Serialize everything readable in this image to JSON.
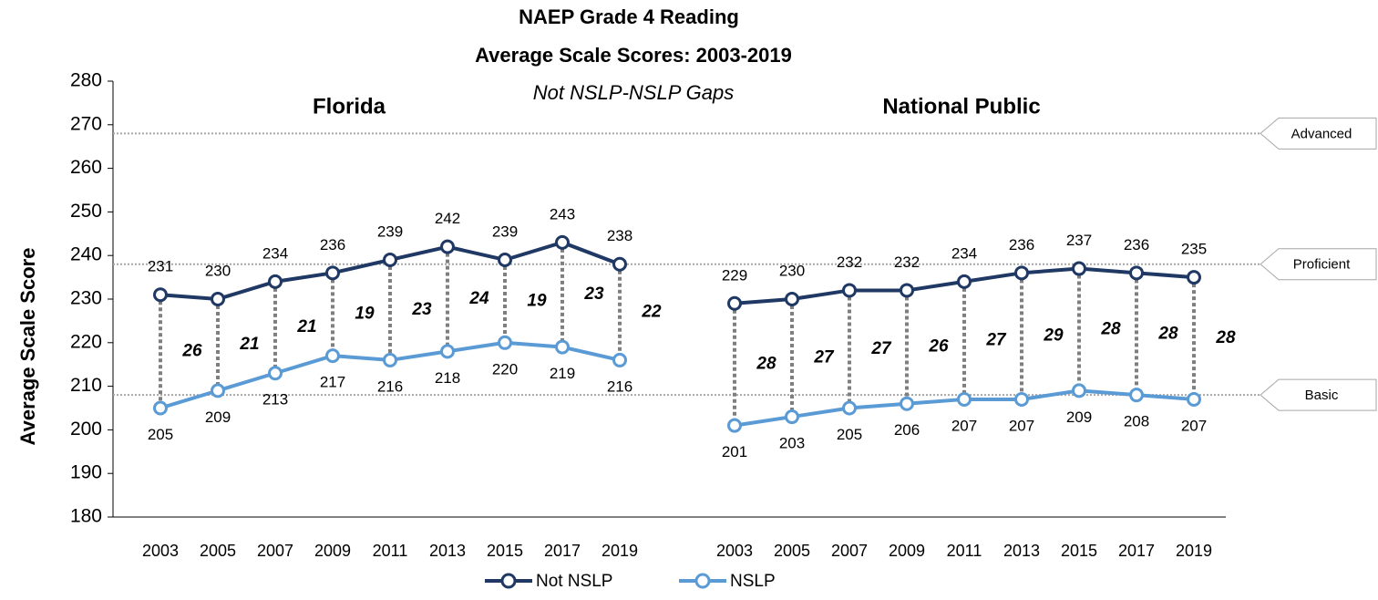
{
  "chart_data": {
    "type": "line",
    "title": "NAEP Grade 4 Reading",
    "subtitle": "Average Scale Scores: 2003-2019",
    "annotation": "Not NSLP-NSLP Gaps",
    "y_label": "Average Scale Score",
    "panels": [
      "Florida",
      "National Public"
    ],
    "categories": [
      "2003",
      "2005",
      "2007",
      "2009",
      "2011",
      "2013",
      "2015",
      "2017",
      "2019",
      null,
      "2003",
      "2005",
      "2007",
      "2009",
      "2011",
      "2013",
      "2015",
      "2017",
      "2019"
    ],
    "series": [
      {
        "name": "Not NSLP",
        "color": "#1f3864",
        "values": [
          231,
          230,
          234,
          236,
          239,
          242,
          239,
          243,
          238,
          null,
          229,
          230,
          232,
          232,
          234,
          236,
          237,
          236,
          235
        ]
      },
      {
        "name": "NSLP",
        "color": "#5b9bd5",
        "values": [
          205,
          209,
          213,
          217,
          216,
          218,
          220,
          219,
          216,
          null,
          201,
          203,
          205,
          206,
          207,
          207,
          209,
          208,
          207
        ]
      }
    ],
    "gaps": [
      26,
      21,
      21,
      19,
      23,
      24,
      19,
      23,
      22,
      null,
      28,
      27,
      27,
      26,
      27,
      29,
      28,
      28,
      28
    ],
    "reference_lines": [
      {
        "label": "Advanced",
        "value": 268
      },
      {
        "label": "Proficient",
        "value": 238
      },
      {
        "label": "Basic",
        "value": 208
      }
    ],
    "ylim": [
      180,
      280
    ],
    "yticks": [
      180,
      190,
      200,
      210,
      220,
      230,
      240,
      250,
      260,
      270,
      280
    ],
    "grid": false
  }
}
